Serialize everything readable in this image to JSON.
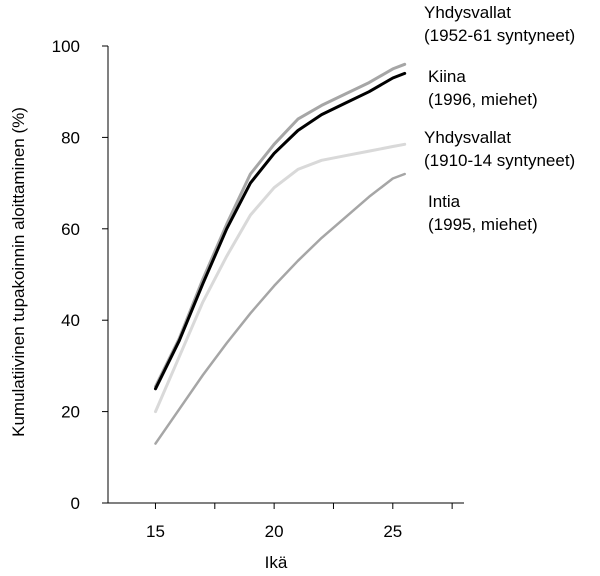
{
  "chart_data": {
    "type": "line",
    "xlabel": "Ikä",
    "ylabel": "Kumulatiivinen tupakoinnin aloittaminen (%)",
    "xlim": [
      13,
      28
    ],
    "ylim": [
      0,
      100
    ],
    "x_ticks": [
      15,
      20,
      25
    ],
    "y_ticks": [
      0,
      20,
      40,
      60,
      80,
      100
    ],
    "grid": false,
    "legend": "none",
    "series": [
      {
        "name": "Yhdysvallat (1952-61 syntyneet)",
        "label_lines": [
          "Yhdysvallat",
          "(1952-61 syntyneet)"
        ],
        "color": "#a6a6a6",
        "stroke_width": 3,
        "x": [
          15,
          16,
          17,
          18,
          19,
          20,
          21,
          22,
          23,
          24,
          25,
          25.5
        ],
        "y": [
          25.5,
          36,
          49,
          61,
          72,
          78.5,
          84,
          87,
          89.5,
          92,
          95,
          96
        ]
      },
      {
        "name": "Kiina (1996, miehet)",
        "label_lines": [
          "Kiina",
          "(1996, miehet)"
        ],
        "color": "#000000",
        "stroke_width": 3,
        "x": [
          15,
          16,
          17,
          18,
          19,
          20,
          21,
          22,
          23,
          24,
          25,
          25.5
        ],
        "y": [
          25,
          35.5,
          48,
          60,
          70,
          76.5,
          81.5,
          85,
          87.5,
          90,
          93,
          94
        ]
      },
      {
        "name": "Yhdysvallat (1910-14 syntyneet)",
        "label_lines": [
          "Yhdysvallat",
          "(1910-14 syntyneet)"
        ],
        "color": "#d9d9d9",
        "stroke_width": 3,
        "x": [
          15,
          16,
          17,
          18,
          19,
          20,
          21,
          22,
          23,
          24,
          25,
          25.5
        ],
        "y": [
          20,
          32,
          44,
          54,
          63,
          69,
          73,
          75,
          76,
          77,
          78,
          78.5
        ]
      },
      {
        "name": "Intia (1995, miehet)",
        "label_lines": [
          "Intia",
          "(1995, miehet)"
        ],
        "color": "#a6a6a6",
        "stroke_width": 2.5,
        "x": [
          15,
          16,
          17,
          18,
          19,
          20,
          21,
          22,
          23,
          24,
          25,
          25.5
        ],
        "y": [
          13,
          20.5,
          28,
          35,
          41.5,
          47.5,
          53,
          58,
          62.5,
          67,
          71,
          72
        ]
      }
    ]
  }
}
